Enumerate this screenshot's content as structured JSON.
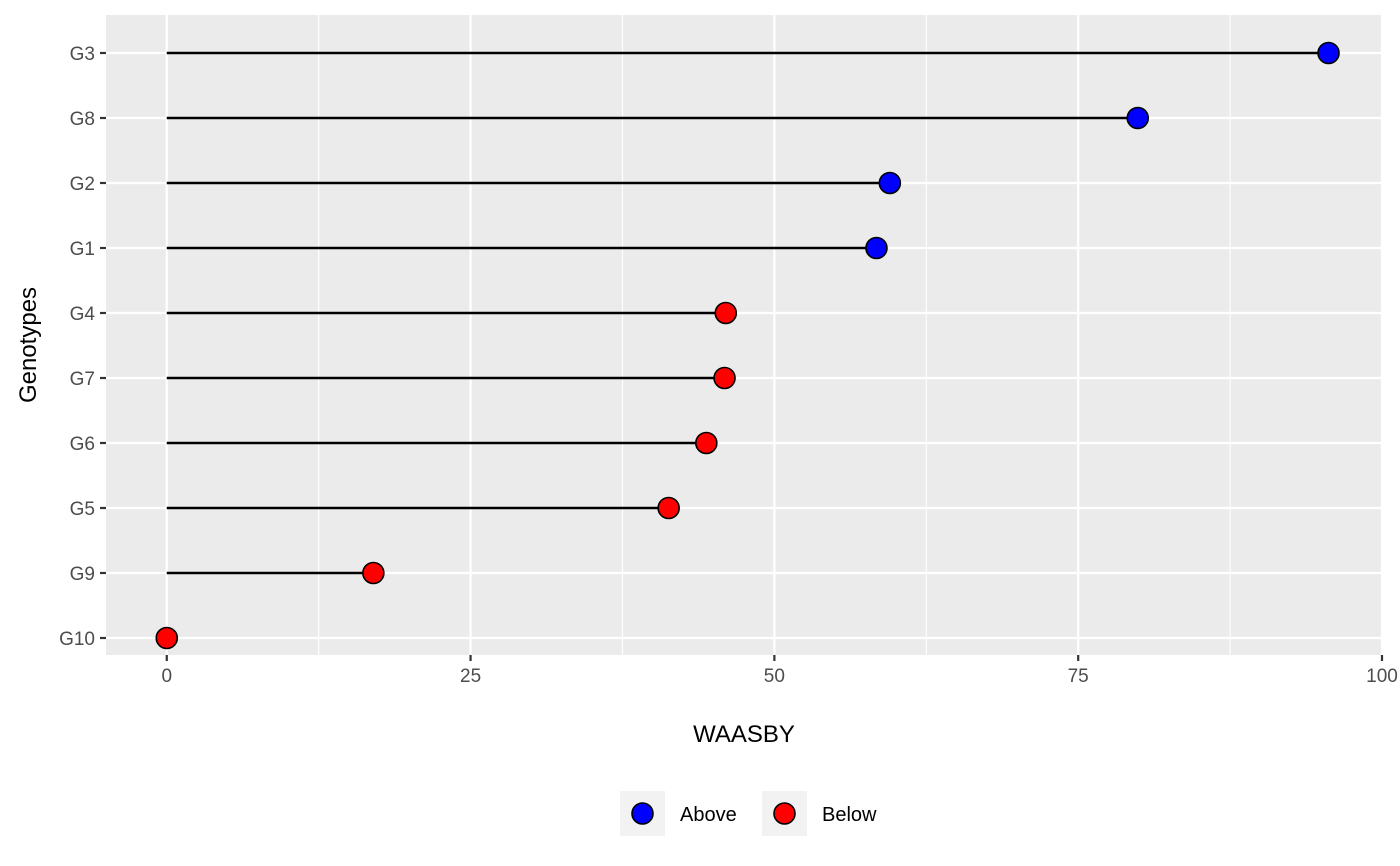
{
  "chart_data": {
    "type": "lollipop",
    "orientation": "horizontal",
    "xlabel": "WAASBY",
    "ylabel": "Genotypes",
    "xlim": [
      -5,
      100
    ],
    "x_ticks": [
      0,
      25,
      50,
      75,
      100
    ],
    "x_tick_labels": [
      "0",
      "25",
      "50",
      "75",
      "100"
    ],
    "grid": true,
    "legend_position": "bottom",
    "categories": [
      "G3",
      "G8",
      "G2",
      "G1",
      "G4",
      "G7",
      "G6",
      "G5",
      "G9",
      "G10"
    ],
    "points": [
      {
        "genotype": "G3",
        "value": 95.6,
        "group": "Above"
      },
      {
        "genotype": "G8",
        "value": 79.9,
        "group": "Above"
      },
      {
        "genotype": "G2",
        "value": 59.5,
        "group": "Above"
      },
      {
        "genotype": "G1",
        "value": 58.4,
        "group": "Above"
      },
      {
        "genotype": "G4",
        "value": 46.0,
        "group": "Below"
      },
      {
        "genotype": "G7",
        "value": 45.9,
        "group": "Below"
      },
      {
        "genotype": "G6",
        "value": 44.4,
        "group": "Below"
      },
      {
        "genotype": "G5",
        "value": 41.3,
        "group": "Below"
      },
      {
        "genotype": "G9",
        "value": 17.0,
        "group": "Below"
      },
      {
        "genotype": "G10",
        "value": 0.0,
        "group": "Below"
      }
    ],
    "legend": [
      {
        "label": "Above",
        "color": "#0000FF"
      },
      {
        "label": "Below",
        "color": "#FF0000"
      }
    ]
  },
  "colors": {
    "panel_background": "#EBEBEB",
    "grid": "#FFFFFF",
    "segment": "#000000",
    "point_outline": "#000000"
  }
}
